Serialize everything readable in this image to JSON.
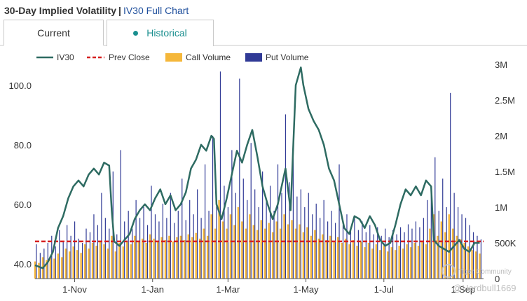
{
  "header": {
    "title": "30-Day Implied Volatility",
    "separator": "|",
    "link_label": "IV30 Full Chart"
  },
  "tabs": [
    {
      "label": "Current",
      "active": false
    },
    {
      "label": "Historical",
      "active": true
    }
  ],
  "watermark": {
    "line1": "Tiger Community",
    "line2": "@Hardbull1669"
  },
  "colors": {
    "iv30": "#2e6b62",
    "prev_close": "#d62020",
    "call_volume": "#f5b73a",
    "put_volume": "#303a96",
    "accent": "#1a8f8f",
    "link": "#1f4f9c"
  },
  "chart_data": {
    "type": "line+bar",
    "legend": [
      {
        "label": "IV30",
        "kind": "line"
      },
      {
        "label": "Prev Close",
        "kind": "dashed"
      },
      {
        "label": "Call Volume",
        "kind": "box"
      },
      {
        "label": "Put Volume",
        "kind": "box"
      }
    ],
    "legend_position": "top-left",
    "x_ticks": [
      {
        "label": "1-Nov",
        "day": 31
      },
      {
        "label": "1-Jan",
        "day": 92
      },
      {
        "label": "1-Mar",
        "day": 151
      },
      {
        "label": "1-May",
        "day": 212
      },
      {
        "label": "1-Jul",
        "day": 273
      },
      {
        "label": "1-Sep",
        "day": 335
      }
    ],
    "x_range_days": [
      0,
      351
    ],
    "y_left": {
      "ticks": [
        "40.0",
        "60.0",
        "80.0",
        "100.0"
      ],
      "values": [
        40,
        60,
        80,
        100
      ],
      "range": [
        35,
        107
      ]
    },
    "y_right": {
      "ticks": [
        "0",
        "500K",
        "1M",
        "1.5M",
        "2M",
        "2.5M",
        "3M"
      ],
      "values": [
        0,
        500000,
        1000000,
        1500000,
        2000000,
        2500000,
        3000000
      ],
      "range": [
        0,
        3000000
      ]
    },
    "prev_close": 47.5,
    "iv30_series": [
      [
        0,
        39.5
      ],
      [
        6,
        38.5
      ],
      [
        10,
        40.5
      ],
      [
        14,
        44
      ],
      [
        18,
        52
      ],
      [
        22,
        56
      ],
      [
        26,
        62
      ],
      [
        30,
        66
      ],
      [
        34,
        68
      ],
      [
        38,
        66
      ],
      [
        42,
        70
      ],
      [
        46,
        72
      ],
      [
        50,
        70
      ],
      [
        54,
        74
      ],
      [
        58,
        73
      ],
      [
        60,
        58
      ],
      [
        62,
        47.5
      ],
      [
        66,
        46
      ],
      [
        70,
        48
      ],
      [
        74,
        50
      ],
      [
        78,
        55
      ],
      [
        82,
        58
      ],
      [
        86,
        60
      ],
      [
        90,
        58
      ],
      [
        94,
        62
      ],
      [
        98,
        65
      ],
      [
        102,
        60
      ],
      [
        106,
        63
      ],
      [
        110,
        58
      ],
      [
        114,
        60
      ],
      [
        118,
        64
      ],
      [
        122,
        72
      ],
      [
        126,
        75
      ],
      [
        130,
        80
      ],
      [
        134,
        78
      ],
      [
        138,
        83
      ],
      [
        140,
        82
      ],
      [
        142,
        60
      ],
      [
        146,
        55
      ],
      [
        150,
        62
      ],
      [
        154,
        70
      ],
      [
        158,
        78
      ],
      [
        162,
        74
      ],
      [
        166,
        80
      ],
      [
        170,
        85
      ],
      [
        174,
        76
      ],
      [
        178,
        66
      ],
      [
        182,
        60
      ],
      [
        186,
        55
      ],
      [
        190,
        60
      ],
      [
        194,
        68
      ],
      [
        196,
        72
      ],
      [
        198,
        65
      ],
      [
        200,
        58
      ],
      [
        204,
        100
      ],
      [
        208,
        106
      ],
      [
        210,
        100
      ],
      [
        214,
        92
      ],
      [
        218,
        88
      ],
      [
        222,
        85
      ],
      [
        226,
        80
      ],
      [
        230,
        72
      ],
      [
        234,
        68
      ],
      [
        238,
        60
      ],
      [
        242,
        52
      ],
      [
        246,
        50
      ],
      [
        250,
        56
      ],
      [
        254,
        55
      ],
      [
        258,
        52
      ],
      [
        262,
        56
      ],
      [
        266,
        53
      ],
      [
        270,
        48
      ],
      [
        274,
        46
      ],
      [
        278,
        47
      ],
      [
        282,
        53
      ],
      [
        286,
        60
      ],
      [
        290,
        65
      ],
      [
        294,
        63
      ],
      [
        298,
        66
      ],
      [
        302,
        63
      ],
      [
        306,
        68
      ],
      [
        310,
        66
      ],
      [
        312,
        48
      ],
      [
        316,
        46
      ],
      [
        320,
        45
      ],
      [
        324,
        44
      ],
      [
        328,
        46
      ],
      [
        332,
        48
      ],
      [
        336,
        45
      ],
      [
        340,
        44
      ],
      [
        344,
        47
      ],
      [
        348,
        47
      ]
    ],
    "volume_series": [
      {
        "day": 0,
        "call": 240000,
        "put": 480000
      },
      {
        "day": 3,
        "call": 220000,
        "put": 360000
      },
      {
        "day": 6,
        "call": 300000,
        "put": 420000
      },
      {
        "day": 9,
        "call": 260000,
        "put": 500000
      },
      {
        "day": 12,
        "call": 310000,
        "put": 600000
      },
      {
        "day": 15,
        "call": 280000,
        "put": 450000
      },
      {
        "day": 18,
        "call": 350000,
        "put": 680000
      },
      {
        "day": 21,
        "call": 300000,
        "put": 520000
      },
      {
        "day": 24,
        "call": 420000,
        "put": 750000
      },
      {
        "day": 27,
        "call": 380000,
        "put": 600000
      },
      {
        "day": 30,
        "call": 450000,
        "put": 800000
      },
      {
        "day": 33,
        "call": 400000,
        "put": 560000
      },
      {
        "day": 36,
        "call": 360000,
        "put": 500000
      },
      {
        "day": 39,
        "call": 480000,
        "put": 700000
      },
      {
        "day": 42,
        "call": 420000,
        "put": 650000
      },
      {
        "day": 45,
        "call": 500000,
        "put": 900000
      },
      {
        "day": 48,
        "call": 460000,
        "put": 750000
      },
      {
        "day": 51,
        "call": 520000,
        "put": 1200000
      },
      {
        "day": 54,
        "call": 480000,
        "put": 850000
      },
      {
        "day": 57,
        "call": 420000,
        "put": 700000
      },
      {
        "day": 60,
        "call": 600000,
        "put": 1500000
      },
      {
        "day": 63,
        "call": 380000,
        "put": 620000
      },
      {
        "day": 66,
        "call": 500000,
        "put": 1800000
      },
      {
        "day": 69,
        "call": 450000,
        "put": 800000
      },
      {
        "day": 72,
        "call": 520000,
        "put": 950000
      },
      {
        "day": 75,
        "call": 480000,
        "put": 700000
      },
      {
        "day": 78,
        "call": 600000,
        "put": 1100000
      },
      {
        "day": 81,
        "call": 520000,
        "put": 850000
      },
      {
        "day": 84,
        "call": 560000,
        "put": 1000000
      },
      {
        "day": 87,
        "call": 500000,
        "put": 750000
      },
      {
        "day": 90,
        "call": 620000,
        "put": 1300000
      },
      {
        "day": 93,
        "call": 560000,
        "put": 900000
      },
      {
        "day": 96,
        "call": 520000,
        "put": 800000
      },
      {
        "day": 99,
        "call": 580000,
        "put": 1050000
      },
      {
        "day": 102,
        "call": 540000,
        "put": 850000
      },
      {
        "day": 105,
        "call": 600000,
        "put": 1200000
      },
      {
        "day": 108,
        "call": 520000,
        "put": 780000
      },
      {
        "day": 111,
        "call": 580000,
        "put": 950000
      },
      {
        "day": 114,
        "call": 600000,
        "put": 1400000
      },
      {
        "day": 117,
        "call": 540000,
        "put": 820000
      },
      {
        "day": 120,
        "call": 620000,
        "put": 1100000
      },
      {
        "day": 123,
        "call": 580000,
        "put": 900000
      },
      {
        "day": 126,
        "call": 640000,
        "put": 1250000
      },
      {
        "day": 129,
        "call": 560000,
        "put": 850000
      },
      {
        "day": 132,
        "call": 700000,
        "put": 1600000
      },
      {
        "day": 135,
        "call": 600000,
        "put": 950000
      },
      {
        "day": 138,
        "call": 900000,
        "put": 2000000
      },
      {
        "day": 141,
        "call": 700000,
        "put": 1100000
      },
      {
        "day": 144,
        "call": 1100000,
        "put": 2900000
      },
      {
        "day": 147,
        "call": 800000,
        "put": 1300000
      },
      {
        "day": 150,
        "call": 700000,
        "put": 1000000
      },
      {
        "day": 153,
        "call": 900000,
        "put": 1800000
      },
      {
        "day": 156,
        "call": 750000,
        "put": 1200000
      },
      {
        "day": 159,
        "call": 1000000,
        "put": 2800000
      },
      {
        "day": 162,
        "call": 800000,
        "put": 1400000
      },
      {
        "day": 165,
        "call": 700000,
        "put": 1100000
      },
      {
        "day": 168,
        "call": 900000,
        "put": 1900000
      },
      {
        "day": 171,
        "call": 750000,
        "put": 1250000
      },
      {
        "day": 174,
        "call": 680000,
        "put": 1000000
      },
      {
        "day": 177,
        "call": 820000,
        "put": 1500000
      },
      {
        "day": 180,
        "call": 700000,
        "put": 1100000
      },
      {
        "day": 183,
        "call": 780000,
        "put": 1300000
      },
      {
        "day": 186,
        "call": 650000,
        "put": 950000
      },
      {
        "day": 189,
        "call": 800000,
        "put": 1600000
      },
      {
        "day": 192,
        "call": 700000,
        "put": 1200000
      },
      {
        "day": 195,
        "call": 900000,
        "put": 2300000
      },
      {
        "day": 198,
        "call": 760000,
        "put": 1350000
      },
      {
        "day": 201,
        "call": 820000,
        "put": 1700000
      },
      {
        "day": 204,
        "call": 700000,
        "put": 1150000
      },
      {
        "day": 207,
        "call": 760000,
        "put": 1250000
      },
      {
        "day": 210,
        "call": 650000,
        "put": 1000000
      },
      {
        "day": 213,
        "call": 720000,
        "put": 1200000
      },
      {
        "day": 216,
        "call": 600000,
        "put": 900000
      },
      {
        "day": 219,
        "call": 680000,
        "put": 1050000
      },
      {
        "day": 222,
        "call": 560000,
        "put": 850000
      },
      {
        "day": 225,
        "call": 620000,
        "put": 1100000
      },
      {
        "day": 228,
        "call": 540000,
        "put": 800000
      },
      {
        "day": 231,
        "call": 600000,
        "put": 950000
      },
      {
        "day": 234,
        "call": 520000,
        "put": 780000
      },
      {
        "day": 237,
        "call": 580000,
        "put": 1600000
      },
      {
        "day": 240,
        "call": 500000,
        "put": 750000
      },
      {
        "day": 243,
        "call": 560000,
        "put": 900000
      },
      {
        "day": 246,
        "call": 480000,
        "put": 700000
      },
      {
        "day": 249,
        "call": 540000,
        "put": 850000
      },
      {
        "day": 252,
        "call": 460000,
        "put": 680000
      },
      {
        "day": 255,
        "call": 520000,
        "put": 800000
      },
      {
        "day": 258,
        "call": 440000,
        "put": 650000
      },
      {
        "day": 261,
        "call": 500000,
        "put": 750000
      },
      {
        "day": 264,
        "call": 420000,
        "put": 620000
      },
      {
        "day": 267,
        "call": 480000,
        "put": 720000
      },
      {
        "day": 270,
        "call": 400000,
        "put": 600000
      },
      {
        "day": 273,
        "call": 460000,
        "put": 700000
      },
      {
        "day": 276,
        "call": 380000,
        "put": 580000
      },
      {
        "day": 279,
        "call": 440000,
        "put": 680000
      },
      {
        "day": 282,
        "call": 400000,
        "put": 620000
      },
      {
        "day": 285,
        "call": 460000,
        "put": 720000
      },
      {
        "day": 288,
        "call": 420000,
        "put": 650000
      },
      {
        "day": 291,
        "call": 480000,
        "put": 760000
      },
      {
        "day": 294,
        "call": 440000,
        "put": 700000
      },
      {
        "day": 297,
        "call": 500000,
        "put": 800000
      },
      {
        "day": 300,
        "call": 460000,
        "put": 720000
      },
      {
        "day": 303,
        "call": 520000,
        "put": 850000
      },
      {
        "day": 306,
        "call": 480000,
        "put": 1100000
      },
      {
        "day": 309,
        "call": 700000,
        "put": 1300000
      },
      {
        "day": 312,
        "call": 900000,
        "put": 1700000
      },
      {
        "day": 315,
        "call": 600000,
        "put": 950000
      },
      {
        "day": 318,
        "call": 800000,
        "put": 1400000
      },
      {
        "day": 321,
        "call": 650000,
        "put": 1000000
      },
      {
        "day": 324,
        "call": 900000,
        "put": 2600000
      },
      {
        "day": 327,
        "call": 700000,
        "put": 1200000
      },
      {
        "day": 330,
        "call": 600000,
        "put": 1000000
      },
      {
        "day": 333,
        "call": 550000,
        "put": 900000
      },
      {
        "day": 336,
        "call": 500000,
        "put": 850000
      },
      {
        "day": 339,
        "call": 450000,
        "put": 750000
      },
      {
        "day": 342,
        "call": 400000,
        "put": 650000
      },
      {
        "day": 345,
        "call": 380000,
        "put": 600000
      },
      {
        "day": 348,
        "call": 350000,
        "put": 550000
      }
    ]
  }
}
